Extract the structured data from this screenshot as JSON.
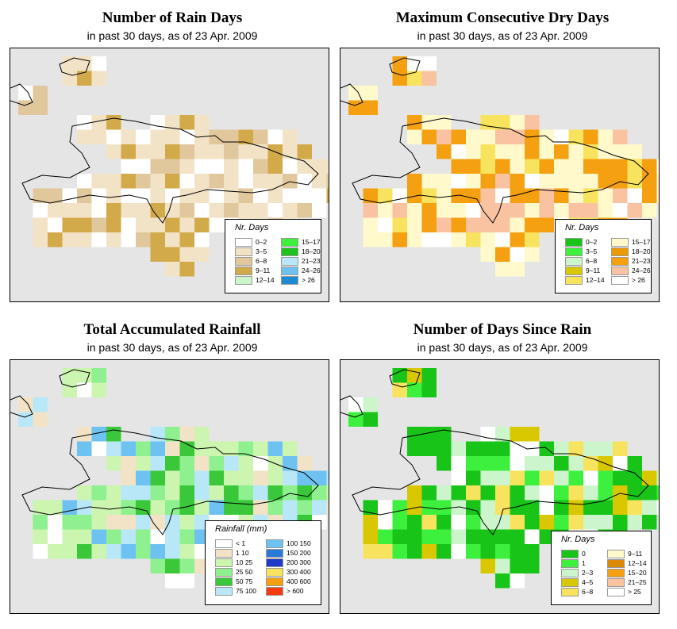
{
  "panels": [
    {
      "id": "rain-days",
      "title": "Number of Rain Days",
      "subtitle": "in past 30 days, as of  23 Apr. 2009",
      "legend_title": "Nr. Days",
      "legend": [
        {
          "label": "0–2",
          "color": "#ffffff"
        },
        {
          "label": "3–5",
          "color": "#f2e3c6"
        },
        {
          "label": "6–8",
          "color": "#e0c79c"
        },
        {
          "label": "9–11",
          "color": "#d2aa4a"
        },
        {
          "label": "12–14",
          "color": "#ccf5cc"
        },
        {
          "label": "15–17",
          "color": "#3df03d"
        },
        {
          "label": "18–20",
          "color": "#1ec21e"
        },
        {
          "label": "21–23",
          "color": "#b8e8f8"
        },
        {
          "label": "24–26",
          "color": "#6ec2f2"
        },
        {
          "label": "> 26",
          "color": "#1e8ad2"
        }
      ]
    },
    {
      "id": "dry-days",
      "title": "Maximum Consecutive Dry Days",
      "subtitle": "in past 30 days, as of  23 Apr. 2009",
      "legend_title": "Nr. Days",
      "legend": [
        {
          "label": "0–2",
          "color": "#19c419"
        },
        {
          "label": "3–5",
          "color": "#3df03d"
        },
        {
          "label": "6–8",
          "color": "#ccf5cc"
        },
        {
          "label": "9–11",
          "color": "#d9c800"
        },
        {
          "label": "12–14",
          "color": "#f7e35e"
        },
        {
          "label": "15–17",
          "color": "#fff9cc"
        },
        {
          "label": "18–20",
          "color": "#ec9a00"
        },
        {
          "label": "21–23",
          "color": "#f4a010"
        },
        {
          "label": "24–26",
          "color": "#f9c2a0"
        },
        {
          "label": "> 26",
          "color": "#ffffff"
        }
      ]
    },
    {
      "id": "rainfall",
      "title": "Total Accumulated Rainfall",
      "subtitle": "in past 30 days, as of  23 Apr. 2009",
      "legend_title": "Rainfall (mm)",
      "legend": [
        {
          "label": "< 1",
          "color": "#ffffff"
        },
        {
          "label": "1   10",
          "color": "#f2e3c6"
        },
        {
          "label": "10   25",
          "color": "#ccf5b0"
        },
        {
          "label": "25   50",
          "color": "#8ef08e"
        },
        {
          "label": "50   75",
          "color": "#3ac83a"
        },
        {
          "label": "75  100",
          "color": "#b8e8f8"
        },
        {
          "label": "100  150",
          "color": "#6ec2f2"
        },
        {
          "label": "150  200",
          "color": "#2a7ad8"
        },
        {
          "label": "200  300",
          "color": "#1e3cc8"
        },
        {
          "label": "300  400",
          "color": "#f7e35e"
        },
        {
          "label": "400  600",
          "color": "#f4a010"
        },
        {
          "label": "> 600",
          "color": "#f43c10"
        }
      ]
    },
    {
      "id": "since-rain",
      "title": "Number of Days Since Rain",
      "subtitle": "in past 30 days, as of  23 Apr. 2009",
      "legend_title": "Nr. Days",
      "legend": [
        {
          "label": "0",
          "color": "#19c419"
        },
        {
          "label": "1",
          "color": "#3df03d"
        },
        {
          "label": "2–3",
          "color": "#ccf5cc"
        },
        {
          "label": "4–5",
          "color": "#d9c800"
        },
        {
          "label": "6–8",
          "color": "#f7e35e"
        },
        {
          "label": "9–11",
          "color": "#fff9cc"
        },
        {
          "label": "12–14",
          "color": "#d98a00"
        },
        {
          "label": "15–20",
          "color": "#f4a010"
        },
        {
          "label": "21–25",
          "color": "#f9c2a0"
        },
        {
          "label": "> 25",
          "color": "#ffffff"
        }
      ]
    }
  ]
}
